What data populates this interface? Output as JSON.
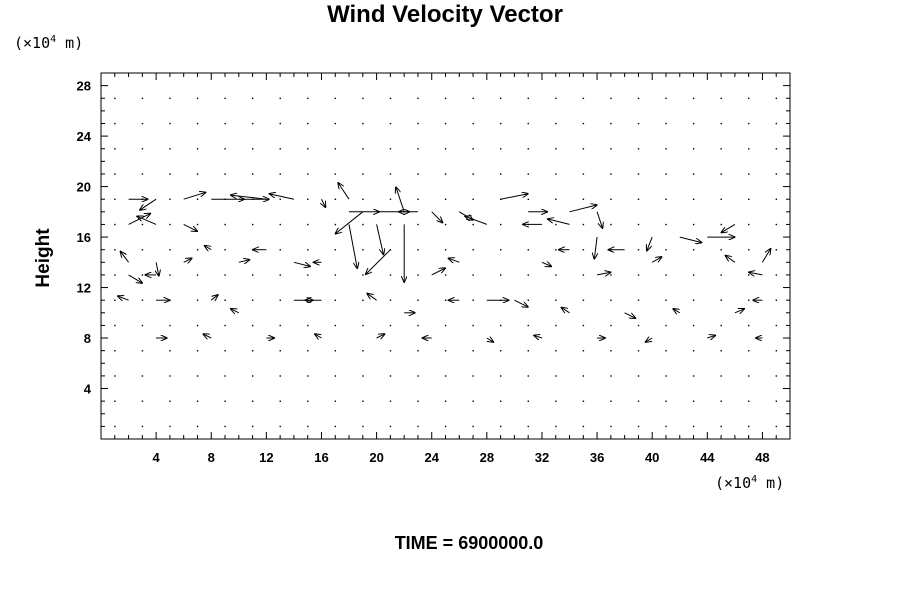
{
  "chart_data": {
    "type": "vector-field",
    "title": "Wind Velocity Vector",
    "ylabel": "Height",
    "x_unit_prefix": "(×10",
    "x_unit_exp": "4",
    "x_unit_suffix": " m)",
    "y_unit_prefix": "(×10",
    "y_unit_exp": "4",
    "y_unit_suffix": " m)",
    "footer": "TIME = 6900000.0",
    "xlim": [
      0,
      50
    ],
    "ylim": [
      0,
      29
    ],
    "x_ticks": [
      4,
      8,
      12,
      16,
      20,
      24,
      28,
      32,
      36,
      40,
      44,
      48
    ],
    "x_tick_labels": [
      "4",
      "8",
      "12",
      "16",
      "20",
      "24",
      "28",
      "32",
      "36",
      "40",
      "44",
      "48"
    ],
    "y_ticks": [
      4,
      8,
      12,
      16,
      20,
      24,
      28
    ],
    "y_tick_labels": [
      "4",
      "8",
      "12",
      "16",
      "20",
      "24",
      "28"
    ],
    "grid": false,
    "arrow_color": "#000000",
    "vectors": [
      {
        "x": 2,
        "y": 19,
        "u": 1.4,
        "v": 0.0
      },
      {
        "x": 4,
        "y": 19,
        "u": -1.2,
        "v": -0.8
      },
      {
        "x": 6,
        "y": 19,
        "u": 1.6,
        "v": 0.5
      },
      {
        "x": 8,
        "y": 19,
        "u": 2.4,
        "v": 0.0
      },
      {
        "x": 10,
        "y": 19,
        "u": 2.2,
        "v": 0.0
      },
      {
        "x": 12,
        "y": 19,
        "u": -2.6,
        "v": 0.3
      },
      {
        "x": 14,
        "y": 19,
        "u": -1.8,
        "v": 0.4
      },
      {
        "x": 16,
        "y": 19,
        "u": 0.3,
        "v": -0.6
      },
      {
        "x": 18,
        "y": 18,
        "u": 2.2,
        "v": 0.0
      },
      {
        "x": 18,
        "y": 19,
        "u": -0.8,
        "v": 1.2
      },
      {
        "x": 18,
        "y": 17,
        "u": 0.6,
        "v": -3.2
      },
      {
        "x": 19,
        "y": 18,
        "u": -2.0,
        "v": -1.6
      },
      {
        "x": 20,
        "y": 18,
        "u": 2.4,
        "v": 0.0
      },
      {
        "x": 20,
        "y": 17,
        "u": 0.5,
        "v": -2.2
      },
      {
        "x": 21,
        "y": 15,
        "u": -1.8,
        "v": -1.8
      },
      {
        "x": 22,
        "y": 18,
        "u": -0.6,
        "v": 1.8
      },
      {
        "x": 22,
        "y": 17,
        "u": 0.0,
        "v": -4.2
      },
      {
        "x": 23,
        "y": 18,
        "u": -1.4,
        "v": 0.0
      },
      {
        "x": 24,
        "y": 18,
        "u": 0.8,
        "v": -0.8
      },
      {
        "x": 26,
        "y": 18,
        "u": 1.0,
        "v": -0.6
      },
      {
        "x": 28,
        "y": 17,
        "u": -1.6,
        "v": 0.6
      },
      {
        "x": 29,
        "y": 19,
        "u": 2.0,
        "v": 0.4
      },
      {
        "x": 31,
        "y": 18,
        "u": 1.4,
        "v": 0.0
      },
      {
        "x": 32,
        "y": 17,
        "u": -1.4,
        "v": 0.0
      },
      {
        "x": 34,
        "y": 18,
        "u": 2.0,
        "v": 0.5
      },
      {
        "x": 34,
        "y": 17,
        "u": -1.6,
        "v": 0.4
      },
      {
        "x": 36,
        "y": 18,
        "u": 0.4,
        "v": -1.2
      },
      {
        "x": 36,
        "y": 16,
        "u": -0.2,
        "v": -1.6
      },
      {
        "x": 38,
        "y": 15,
        "u": -1.2,
        "v": 0.0
      },
      {
        "x": 40,
        "y": 16,
        "u": -0.4,
        "v": -1.0
      },
      {
        "x": 42,
        "y": 16,
        "u": 1.6,
        "v": -0.4
      },
      {
        "x": 44,
        "y": 16,
        "u": 2.0,
        "v": 0.0
      },
      {
        "x": 46,
        "y": 17,
        "u": -1.0,
        "v": -0.6
      },
      {
        "x": 48,
        "y": 14,
        "u": 0.6,
        "v": 1.0
      },
      {
        "x": 48,
        "y": 13,
        "u": -1.0,
        "v": 0.2
      },
      {
        "x": 2,
        "y": 17,
        "u": 1.6,
        "v": 0.8
      },
      {
        "x": 4,
        "y": 17,
        "u": -1.4,
        "v": 0.6
      },
      {
        "x": 6,
        "y": 17,
        "u": 1.0,
        "v": -0.5
      },
      {
        "x": 2,
        "y": 14,
        "u": -0.6,
        "v": 0.8
      },
      {
        "x": 2,
        "y": 13,
        "u": 1.0,
        "v": -0.6
      },
      {
        "x": 4,
        "y": 14,
        "u": 0.2,
        "v": -1.0
      },
      {
        "x": 4,
        "y": 13,
        "u": -0.8,
        "v": 0.0
      },
      {
        "x": 6,
        "y": 14,
        "u": 0.6,
        "v": 0.3
      },
      {
        "x": 8,
        "y": 15,
        "u": -0.5,
        "v": 0.3
      },
      {
        "x": 10,
        "y": 14,
        "u": 0.8,
        "v": 0.2
      },
      {
        "x": 12,
        "y": 15,
        "u": -1.0,
        "v": 0.0
      },
      {
        "x": 14,
        "y": 14,
        "u": 1.2,
        "v": -0.3
      },
      {
        "x": 16,
        "y": 14,
        "u": -0.6,
        "v": 0.0
      },
      {
        "x": 24,
        "y": 13,
        "u": 1.0,
        "v": 0.5
      },
      {
        "x": 26,
        "y": 14,
        "u": -0.8,
        "v": 0.3
      },
      {
        "x": 32,
        "y": 14,
        "u": 0.7,
        "v": -0.3
      },
      {
        "x": 34,
        "y": 15,
        "u": -0.8,
        "v": 0.0
      },
      {
        "x": 36,
        "y": 13,
        "u": 1.0,
        "v": 0.2
      },
      {
        "x": 40,
        "y": 14,
        "u": 0.7,
        "v": 0.4
      },
      {
        "x": 46,
        "y": 14,
        "u": -0.7,
        "v": 0.5
      },
      {
        "x": 14,
        "y": 11,
        "u": 1.4,
        "v": 0.0
      },
      {
        "x": 16,
        "y": 11,
        "u": -1.2,
        "v": 0.0
      },
      {
        "x": 28,
        "y": 11,
        "u": 1.6,
        "v": 0.0
      },
      {
        "x": 30,
        "y": 11,
        "u": 1.0,
        "v": -0.5
      },
      {
        "x": 26,
        "y": 11,
        "u": -0.8,
        "v": 0.0
      },
      {
        "x": 2,
        "y": 11,
        "u": -0.8,
        "v": 0.3
      },
      {
        "x": 4,
        "y": 11,
        "u": 1.0,
        "v": 0.0
      },
      {
        "x": 8,
        "y": 11,
        "u": 0.5,
        "v": 0.4
      },
      {
        "x": 10,
        "y": 10,
        "u": -0.6,
        "v": 0.3
      },
      {
        "x": 20,
        "y": 11,
        "u": -0.7,
        "v": 0.5
      },
      {
        "x": 22,
        "y": 10,
        "u": 0.8,
        "v": 0.0
      },
      {
        "x": 34,
        "y": 10,
        "u": -0.6,
        "v": 0.4
      },
      {
        "x": 38,
        "y": 10,
        "u": 0.8,
        "v": -0.4
      },
      {
        "x": 42,
        "y": 10,
        "u": -0.5,
        "v": 0.3
      },
      {
        "x": 46,
        "y": 10,
        "u": 0.7,
        "v": 0.3
      },
      {
        "x": 48,
        "y": 11,
        "u": -0.7,
        "v": 0.0
      },
      {
        "x": 4,
        "y": 8,
        "u": 0.8,
        "v": 0.0
      },
      {
        "x": 8,
        "y": 8,
        "u": -0.6,
        "v": 0.3
      },
      {
        "x": 12,
        "y": 8,
        "u": 0.6,
        "v": 0.0
      },
      {
        "x": 16,
        "y": 8,
        "u": -0.5,
        "v": 0.3
      },
      {
        "x": 20,
        "y": 8,
        "u": 0.6,
        "v": 0.3
      },
      {
        "x": 24,
        "y": 8,
        "u": -0.7,
        "v": 0.0
      },
      {
        "x": 28,
        "y": 8,
        "u": 0.5,
        "v": -0.3
      },
      {
        "x": 32,
        "y": 8,
        "u": -0.6,
        "v": 0.2
      },
      {
        "x": 36,
        "y": 8,
        "u": 0.6,
        "v": 0.0
      },
      {
        "x": 40,
        "y": 8,
        "u": -0.5,
        "v": -0.3
      },
      {
        "x": 44,
        "y": 8,
        "u": 0.6,
        "v": 0.2
      },
      {
        "x": 48,
        "y": 8,
        "u": -0.5,
        "v": 0.0
      }
    ]
  }
}
